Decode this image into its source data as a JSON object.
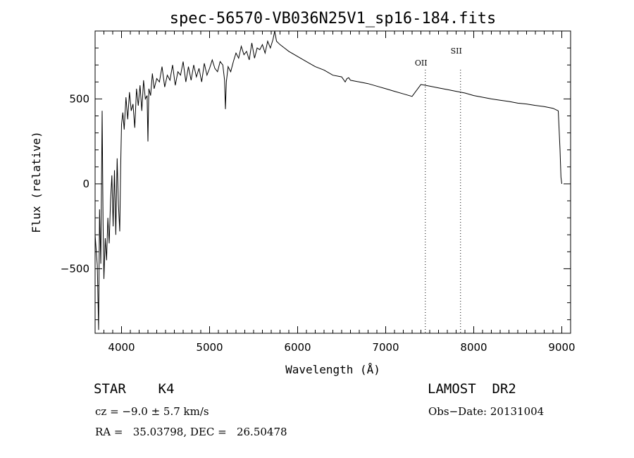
{
  "chart_data": {
    "type": "line",
    "title": "spec-56570-VB036N25V1_sp16-184.fits",
    "xlabel": "Wavelength (Å)",
    "ylabel": "Flux (relative)",
    "xlim": [
      3700,
      9100
    ],
    "ylim": [
      -880,
      900
    ],
    "x_ticks": [
      4000,
      5000,
      6000,
      7000,
      8000,
      9000
    ],
    "x_tick_labels": [
      "4000",
      "5000",
      "6000",
      "7000",
      "8000",
      "9000"
    ],
    "y_ticks": [
      -500,
      0,
      500
    ],
    "y_tick_labels": [
      "−500",
      "0",
      "500"
    ],
    "grid": false,
    "series": [
      {
        "x": [
          3700,
          3725,
          3740,
          3750,
          3765,
          3780,
          3790,
          3800,
          3815,
          3830,
          3845,
          3860,
          3875,
          3890,
          3905,
          3920,
          3935,
          3950,
          3965,
          3980,
          3990,
          4000,
          4015,
          4030,
          4050,
          4070,
          4090,
          4110,
          4130,
          4150,
          4170,
          4190,
          4210,
          4230,
          4250,
          4270,
          4290,
          4300,
          4310,
          4330,
          4350,
          4370,
          4400,
          4430,
          4460,
          4490,
          4520,
          4550,
          4580,
          4610,
          4640,
          4670,
          4700,
          4730,
          4760,
          4790,
          4820,
          4850,
          4880,
          4910,
          4940,
          4970,
          5000,
          5030,
          5060,
          5090,
          5120,
          5150,
          5170,
          5180,
          5190,
          5210,
          5240,
          5270,
          5300,
          5330,
          5360,
          5390,
          5420,
          5450,
          5480,
          5510,
          5540,
          5570,
          5600,
          5630,
          5660,
          5690,
          5720,
          5740,
          5760,
          5800,
          5850,
          5900,
          6000,
          6100,
          6200,
          6300,
          6400,
          6500,
          6540,
          6560,
          6580,
          6600,
          6700,
          6800,
          6900,
          7000,
          7100,
          7200,
          7300,
          7400,
          7500,
          7600,
          7700,
          7800,
          7900,
          8000,
          8100,
          8200,
          8300,
          8400,
          8500,
          8600,
          8700,
          8800,
          8900,
          8960,
          8980,
          8990,
          9000
        ],
        "y": [
          -300,
          -480,
          -860,
          -150,
          -470,
          430,
          -230,
          -560,
          -320,
          -450,
          -200,
          -350,
          -100,
          50,
          -250,
          80,
          -300,
          150,
          -120,
          -280,
          100,
          350,
          420,
          320,
          510,
          380,
          540,
          430,
          470,
          330,
          560,
          460,
          580,
          430,
          610,
          500,
          520,
          250,
          560,
          520,
          650,
          560,
          620,
          600,
          690,
          570,
          640,
          610,
          700,
          580,
          660,
          640,
          720,
          600,
          690,
          610,
          700,
          630,
          680,
          600,
          710,
          640,
          680,
          730,
          680,
          660,
          720,
          700,
          610,
          440,
          600,
          690,
          660,
          720,
          770,
          740,
          810,
          760,
          780,
          730,
          830,
          740,
          800,
          790,
          820,
          770,
          840,
          800,
          850,
          900,
          840,
          820,
          800,
          780,
          750,
          720,
          690,
          670,
          640,
          630,
          600,
          620,
          625,
          610,
          600,
          590,
          575,
          560,
          545,
          530,
          515,
          585,
          575,
          565,
          555,
          545,
          535,
          520,
          510,
          500,
          492,
          485,
          475,
          470,
          462,
          455,
          445,
          430,
          200,
          40,
          0
        ]
      }
    ],
    "annotations": [
      {
        "label": "OII",
        "x": 7450
      },
      {
        "label": "SII",
        "x": 7850
      }
    ]
  },
  "footer": {
    "object": "STAR    K4",
    "survey": "LAMOST  DR2",
    "cz": "cz = −9.0 ± 5.7 km/s",
    "obs_date": "Obs−Date: 20131004",
    "coords": "RA =   35.03798, DEC =   26.50478"
  }
}
